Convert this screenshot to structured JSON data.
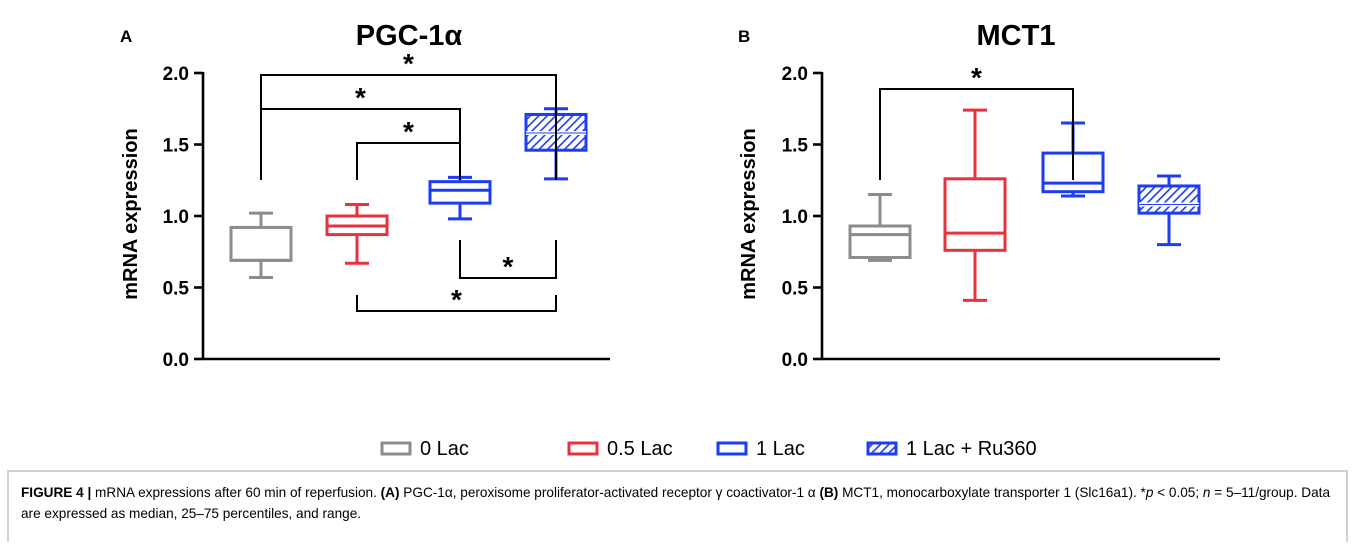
{
  "chart_data": [
    {
      "panel": "A",
      "type": "box",
      "title": "PGC-1α",
      "ylabel": "mRNA expression",
      "ylim": [
        0,
        2.0
      ],
      "yticks": [
        "0.0",
        "0.5",
        "1.0",
        "1.5",
        "2.0"
      ],
      "groups": [
        {
          "name": "0 Lac",
          "min": 0.57,
          "q1": 0.69,
          "median": 0.69,
          "q3": 0.92,
          "max": 1.02,
          "hatched": false
        },
        {
          "name": "0.5 Lac",
          "min": 0.67,
          "q1": 0.87,
          "median": 0.93,
          "q3": 1.0,
          "max": 1.08,
          "hatched": false
        },
        {
          "name": "1 Lac",
          "min": 0.98,
          "q1": 1.09,
          "median": 1.18,
          "q3": 1.24,
          "max": 1.27,
          "hatched": false
        },
        {
          "name": "1 Lac + Ru360",
          "min": 1.26,
          "q1": 1.46,
          "median": 1.58,
          "q3": 1.71,
          "max": 1.75,
          "hatched": true
        }
      ],
      "significance": [
        {
          "from": 0,
          "to": 3,
          "label": "*",
          "position": "above"
        },
        {
          "from": 0,
          "to": 2,
          "label": "*",
          "position": "above"
        },
        {
          "from": 1,
          "to": 2,
          "label": "*",
          "position": "above"
        },
        {
          "from": 2,
          "to": 3,
          "label": "*",
          "position": "below"
        },
        {
          "from": 1,
          "to": 3,
          "label": "*",
          "position": "below"
        }
      ]
    },
    {
      "panel": "B",
      "type": "box",
      "title": "MCT1",
      "ylabel": "mRNA expression",
      "ylim": [
        0,
        2.0
      ],
      "yticks": [
        "0.0",
        "0.5",
        "1.0",
        "1.5",
        "2.0"
      ],
      "groups": [
        {
          "name": "0 Lac",
          "min": 0.69,
          "q1": 0.71,
          "median": 0.87,
          "q3": 0.93,
          "max": 1.15,
          "hatched": false
        },
        {
          "name": "0.5 Lac",
          "min": 0.41,
          "q1": 0.76,
          "median": 0.88,
          "q3": 1.26,
          "max": 1.74,
          "hatched": false
        },
        {
          "name": "1 Lac",
          "min": 1.14,
          "q1": 1.17,
          "median": 1.23,
          "q3": 1.44,
          "max": 1.65,
          "hatched": false
        },
        {
          "name": "1 Lac + Ru360",
          "min": 0.8,
          "q1": 1.02,
          "median": 1.08,
          "q3": 1.21,
          "max": 1.28,
          "hatched": true
        }
      ],
      "significance": [
        {
          "from": 0,
          "to": 2,
          "label": "*",
          "position": "above"
        }
      ]
    }
  ],
  "legend": {
    "placement": "bottom-center",
    "items": [
      {
        "label": "0 Lac",
        "color": "#8c8c8c",
        "hatched": false
      },
      {
        "label": "0.5 Lac",
        "color": "#e8323c",
        "hatched": false
      },
      {
        "label": "1 Lac",
        "color": "#1e3cf0",
        "hatched": false
      },
      {
        "label": "1 Lac + Ru360",
        "color": "#1e3cf0",
        "hatched": true
      }
    ]
  },
  "colors": {
    "gray": "#8c8c8c",
    "red": "#e8323c",
    "blue": "#1e3cf0",
    "caption_border": "#d2d2d2"
  },
  "caption": {
    "figure_label": "FIGURE 4 |",
    "part1": " mRNA expressions after 60 min of reperfusion. ",
    "a_label": "(A)",
    "part2": " PGC-1α, peroxisome proliferator-activated receptor γ coactivator-1 α ",
    "b_label": "(B)",
    "part3": " MCT1, monocarboxylate transporter 1 (Slc16a1). *",
    "p_symbol": "p",
    "part4": " < 0.05; ",
    "n_symbol": "n",
    "part5": " = 5–11/group. Data are expressed as median, 25–75 percentiles, and range."
  }
}
